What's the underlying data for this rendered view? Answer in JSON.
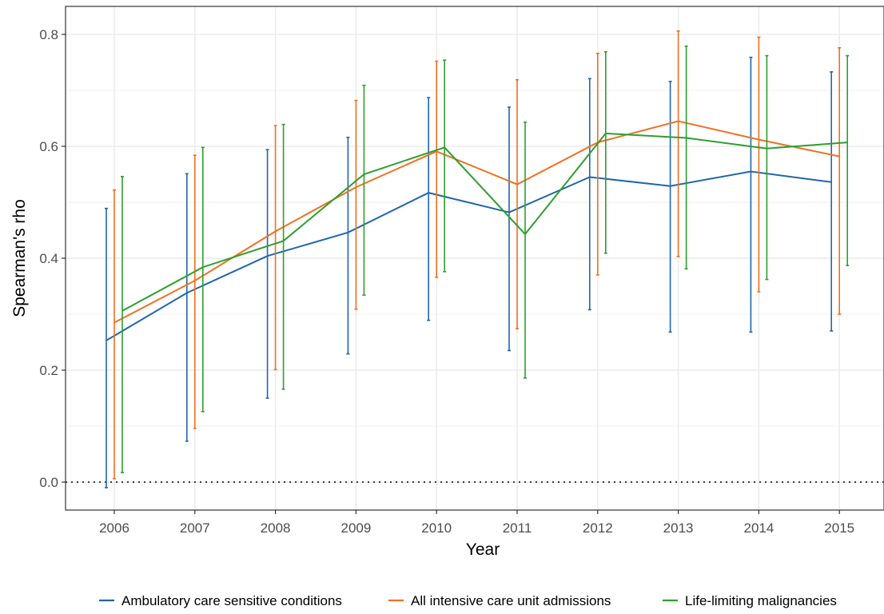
{
  "chart_data": {
    "type": "line",
    "xlabel": "Year",
    "ylabel": "Spearman's rho",
    "categories": [
      "2006",
      "2007",
      "2008",
      "2009",
      "2010",
      "2011",
      "2012",
      "2013",
      "2014",
      "2015"
    ],
    "ylim": [
      -0.05,
      0.85
    ],
    "yticks": [
      0.0,
      0.2,
      0.4,
      0.6,
      0.8
    ],
    "ytick_labels": [
      "0.0",
      "0.2",
      "0.4",
      "0.6",
      "0.8"
    ],
    "grid": true,
    "reference_line": {
      "y": 0.0,
      "style": "dotted"
    },
    "legend_position": "bottom",
    "series": [
      {
        "name": "Ambulatory care sensitive conditions",
        "color": "#2166ac",
        "values": [
          0.253,
          0.338,
          0.404,
          0.446,
          0.517,
          0.482,
          0.545,
          0.529,
          0.555,
          0.536
        ],
        "lower": [
          -0.01,
          0.073,
          0.15,
          0.229,
          0.289,
          0.235,
          0.308,
          0.268,
          0.268,
          0.27
        ],
        "upper": [
          0.489,
          0.551,
          0.594,
          0.616,
          0.687,
          0.67,
          0.721,
          0.716,
          0.759,
          0.733
        ]
      },
      {
        "name": "All intensive care unit admissions",
        "color": "#f07122",
        "values": [
          0.285,
          0.36,
          0.448,
          0.527,
          0.591,
          0.532,
          0.607,
          0.645,
          0.612,
          0.582
        ],
        "lower": [
          0.006,
          0.096,
          0.201,
          0.309,
          0.366,
          0.274,
          0.37,
          0.403,
          0.34,
          0.3
        ],
        "upper": [
          0.522,
          0.584,
          0.637,
          0.682,
          0.752,
          0.719,
          0.766,
          0.806,
          0.795,
          0.776
        ]
      },
      {
        "name": "Life-limiting malignancies",
        "color": "#2f9e2f",
        "values": [
          0.306,
          0.384,
          0.431,
          0.55,
          0.598,
          0.443,
          0.623,
          0.615,
          0.596,
          0.607
        ],
        "lower": [
          0.017,
          0.126,
          0.166,
          0.334,
          0.376,
          0.186,
          0.409,
          0.381,
          0.362,
          0.387
        ],
        "upper": [
          0.546,
          0.598,
          0.639,
          0.709,
          0.754,
          0.643,
          0.769,
          0.779,
          0.762,
          0.762
        ]
      }
    ]
  }
}
